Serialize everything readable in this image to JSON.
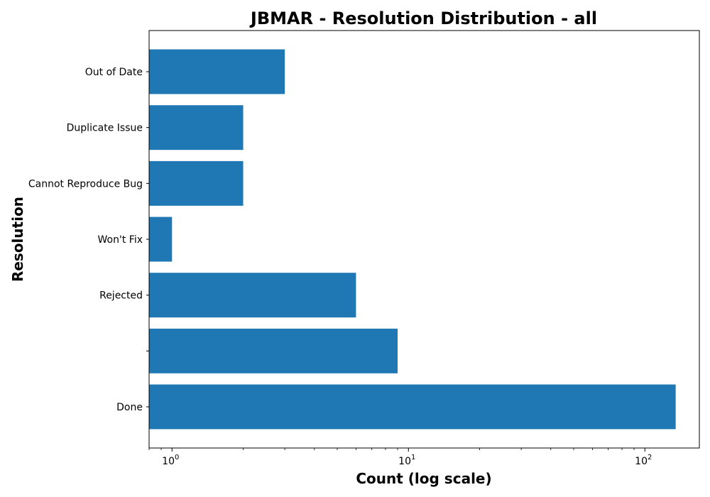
{
  "chart_data": {
    "type": "bar",
    "orientation": "horizontal",
    "title": "JBMAR - Resolution Distribution - all",
    "xlabel": "Count (log scale)",
    "ylabel": "Resolution",
    "x_scale": "log",
    "xlim": [
      0.8,
      170
    ],
    "x_ticks": [
      {
        "base": "10",
        "exp": "0",
        "value": 1
      },
      {
        "base": "10",
        "exp": "1",
        "value": 10
      },
      {
        "base": "10",
        "exp": "2",
        "value": 100
      }
    ],
    "categories": [
      "Done",
      "",
      "Rejected",
      "Won't Fix",
      "Cannot Reproduce Bug",
      "Duplicate Issue",
      "Out of Date"
    ],
    "values": [
      135,
      9,
      6,
      1,
      2,
      2,
      3
    ],
    "bar_color": "#1f77b4",
    "grid": false,
    "legend": false
  }
}
